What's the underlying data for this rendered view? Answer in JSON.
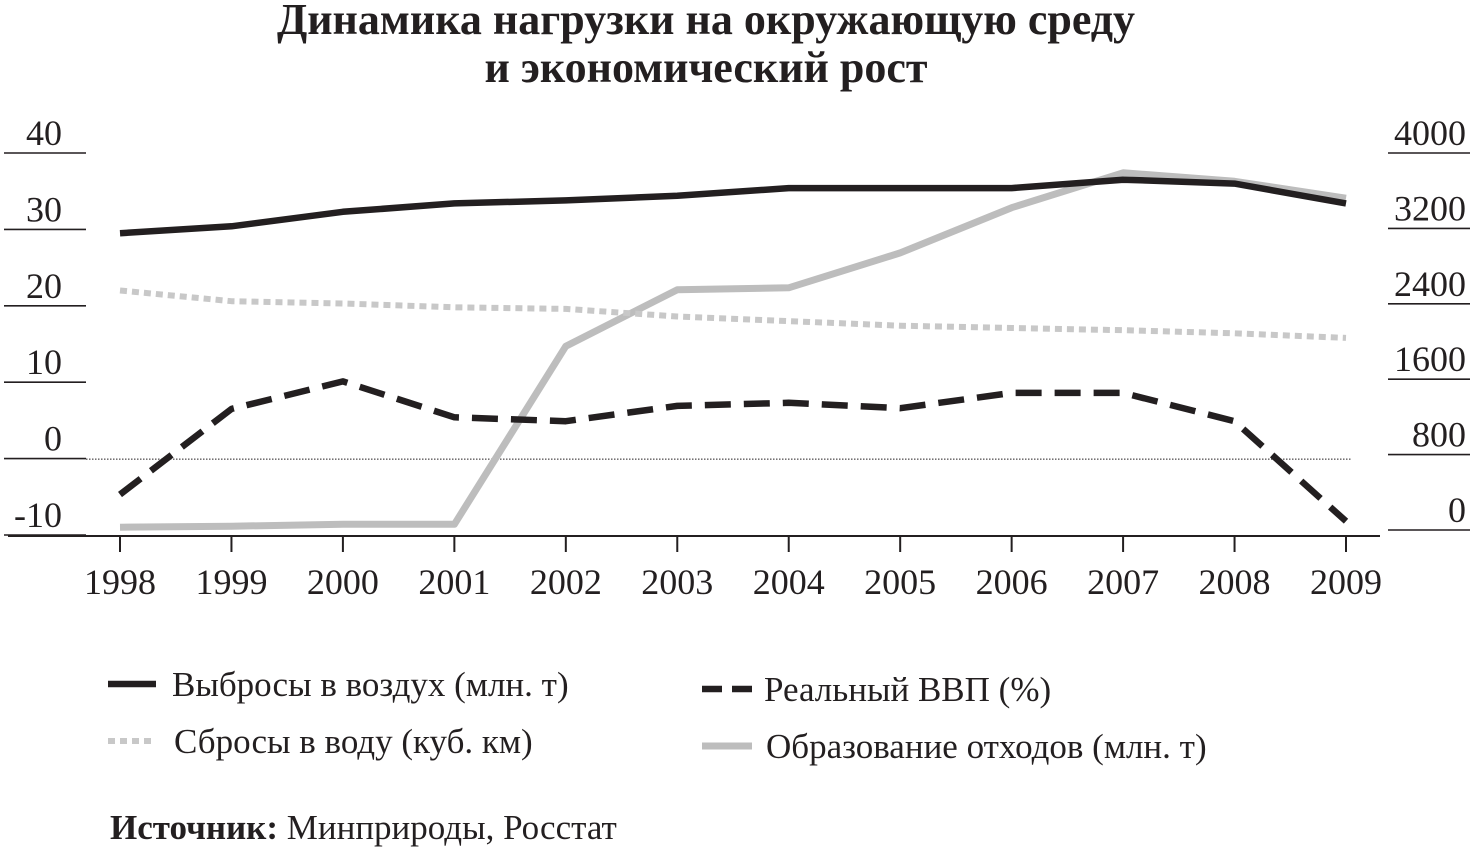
{
  "chart_data": {
    "type": "line",
    "title": [
      "Динамика нагрузки на окружающую среду",
      "и экономический рост"
    ],
    "x": [
      "1998",
      "1999",
      "2000",
      "2001",
      "2002",
      "2003",
      "2004",
      "2005",
      "2006",
      "2007",
      "2008",
      "2009"
    ],
    "y_left": {
      "ticks": [
        "40",
        "30",
        "20",
        "10",
        "0",
        "-10"
      ],
      "range": [
        -10,
        40
      ]
    },
    "y_right": {
      "ticks": [
        "4000",
        "3200",
        "2400",
        "1600",
        "800",
        "0"
      ],
      "range": [
        0,
        4000
      ]
    },
    "series": [
      {
        "name": "Выбросы в воздух (млн. т)",
        "axis": "left",
        "color": "#231f20",
        "style": "solid",
        "values": [
          29.5,
          30.4,
          32.3,
          33.4,
          33.8,
          34.4,
          35.4,
          35.4,
          35.4,
          36.5,
          36.0,
          33.4
        ]
      },
      {
        "name": "Реальный ВВП (%)",
        "axis": "left",
        "color": "#231f20",
        "style": "dashed",
        "values": [
          -4.7,
          6.5,
          10.1,
          5.4,
          4.9,
          6.9,
          7.3,
          6.6,
          8.6,
          8.6,
          4.9,
          -8.2
        ]
      },
      {
        "name": "Сбросы в воду (куб. км)",
        "axis": "left",
        "color": "#c8c8c8",
        "style": "dotted",
        "values": [
          22.0,
          20.6,
          20.3,
          19.8,
          19.6,
          18.6,
          18.0,
          17.4,
          17.1,
          16.8,
          16.4,
          15.8
        ]
      },
      {
        "name": "Образование отходов (млн. т)",
        "axis": "right",
        "color": "#bdbdbd",
        "style": "solid",
        "values": [
          30,
          40,
          60,
          60,
          1950,
          2550,
          2570,
          2940,
          3420,
          3790,
          3700,
          3520
        ]
      }
    ]
  },
  "source": {
    "label": "Источник:",
    "text": " Минприроды, Росстат"
  }
}
